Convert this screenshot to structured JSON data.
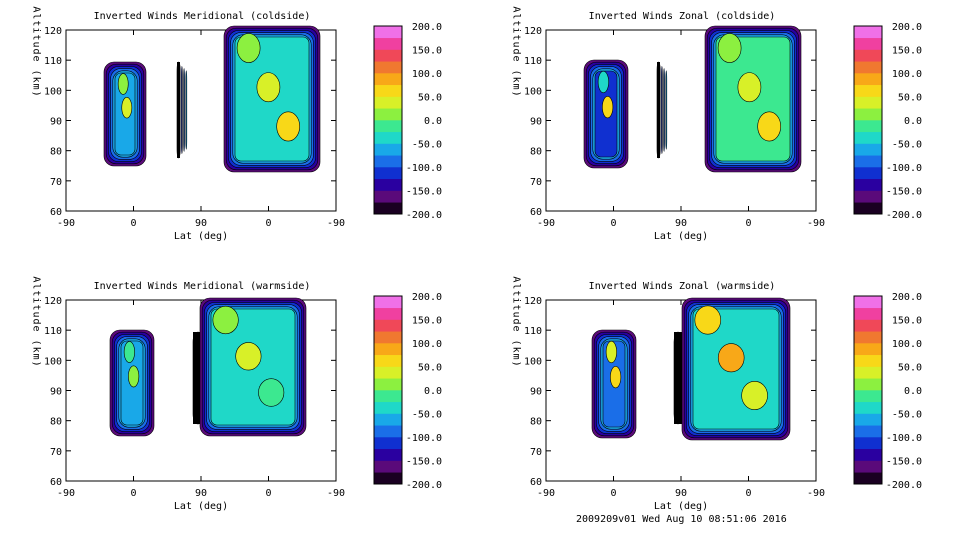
{
  "colors": {
    "scale": [
      "#1a0022",
      "#5a0a7a",
      "#2a00a0",
      "#1030d0",
      "#1a6ee8",
      "#19a8e8",
      "#1fd8c8",
      "#3ce890",
      "#8cf040",
      "#d8f028",
      "#f8d818",
      "#f8a818",
      "#f07830",
      "#f04858",
      "#f040a0",
      "#f070e8"
    ],
    "background": "#ffffff",
    "contour": "#000000"
  },
  "footer": "2009209v01 Wed Aug 10 08:51:06 2016",
  "chart_data": [
    {
      "type": "heatmap",
      "title": "Inverted Winds Meridional (coldside)",
      "xlabel": "Lat (deg)",
      "ylabel": "Altitude (km)",
      "xticks": [
        "-90",
        "0",
        "90",
        "0",
        "-90"
      ],
      "yticks": [
        "60",
        "70",
        "80",
        "90",
        "100",
        "110",
        "120"
      ],
      "ylim": [
        60,
        120
      ],
      "colorbar": [
        "200.0",
        "150.0",
        "100.0",
        "50.0",
        "0.0",
        "-50.0",
        "-100.0",
        "-150.0",
        "-200.0"
      ],
      "zlim": [
        -200,
        200
      ]
    },
    {
      "type": "heatmap",
      "title": "Inverted Winds Zonal (coldside)",
      "xlabel": "Lat (deg)",
      "ylabel": "Altitude (km)",
      "xticks": [
        "-90",
        "0",
        "90",
        "0",
        "-90"
      ],
      "yticks": [
        "60",
        "70",
        "80",
        "90",
        "100",
        "110",
        "120"
      ],
      "ylim": [
        60,
        120
      ],
      "colorbar": [
        "200.0",
        "150.0",
        "100.0",
        "50.0",
        "0.0",
        "-50.0",
        "-100.0",
        "-150.0",
        "-200.0"
      ],
      "zlim": [
        -200,
        200
      ]
    },
    {
      "type": "heatmap",
      "title": "Inverted Winds Meridional (warmside)",
      "xlabel": "Lat (deg)",
      "ylabel": "Altitude (km)",
      "xticks": [
        "-90",
        "0",
        "90",
        "0",
        "-90"
      ],
      "yticks": [
        "60",
        "70",
        "80",
        "90",
        "100",
        "110",
        "120"
      ],
      "ylim": [
        60,
        120
      ],
      "colorbar": [
        "200.0",
        "150.0",
        "100.0",
        "50.0",
        "0.0",
        "-50.0",
        "-100.0",
        "-150.0",
        "-200.0"
      ],
      "zlim": [
        -200,
        200
      ]
    },
    {
      "type": "heatmap",
      "title": "Inverted Winds Zonal (warmside)",
      "xlabel": "Lat (deg)",
      "ylabel": "Altitude (km)",
      "xticks": [
        "-90",
        "0",
        "90",
        "0",
        "-90"
      ],
      "yticks": [
        "60",
        "70",
        "80",
        "90",
        "100",
        "110",
        "120"
      ],
      "ylim": [
        60,
        120
      ],
      "colorbar": [
        "200.0",
        "150.0",
        "100.0",
        "50.0",
        "0.0",
        "-50.0",
        "-100.0",
        "-150.0",
        "-200.0"
      ],
      "zlim": [
        -200,
        200
      ]
    }
  ]
}
